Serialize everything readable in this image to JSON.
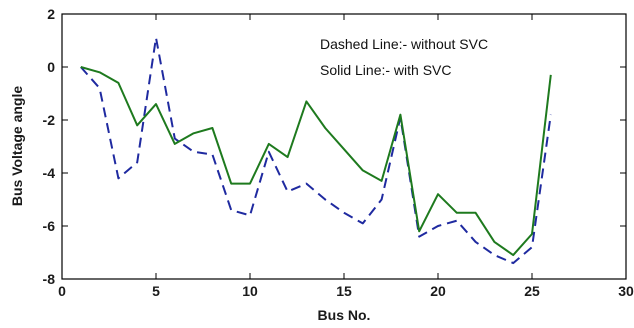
{
  "chart_data": {
    "type": "line",
    "title": "",
    "xlabel": "Bus No.",
    "ylabel": "Bus Voltage angle",
    "xlim": [
      0,
      30
    ],
    "ylim": [
      -8,
      2
    ],
    "xticks": [
      0,
      5,
      10,
      15,
      20,
      25,
      30
    ],
    "yticks": [
      -8,
      -6,
      -4,
      -2,
      0,
      2
    ],
    "grid": false,
    "annotations": [
      "Dashed Line:- without SVC",
      "Solid Line:- with SVC"
    ],
    "series": [
      {
        "style": "dashed",
        "color": "#1f2aa0",
        "x": [
          1,
          2,
          3,
          4,
          5,
          6,
          7,
          8,
          9,
          10,
          11,
          12,
          13,
          14,
          15,
          16,
          17,
          18,
          19,
          20,
          21,
          22,
          23,
          24,
          25,
          26
        ],
        "y": [
          0.0,
          -0.8,
          -4.2,
          -3.6,
          1.1,
          -2.7,
          -3.2,
          -3.3,
          -5.4,
          -5.6,
          -3.2,
          -4.7,
          -4.4,
          -5.0,
          -5.5,
          -5.9,
          -5.0,
          -1.9,
          -6.4,
          -6.0,
          -5.8,
          -6.6,
          -7.1,
          -7.4,
          -6.8,
          -1.8
        ]
      },
      {
        "style": "solid",
        "color": "#1e7a1e",
        "x": [
          1,
          2,
          3,
          4,
          5,
          6,
          7,
          8,
          9,
          10,
          11,
          12,
          13,
          14,
          15,
          16,
          17,
          18,
          19,
          20,
          21,
          22,
          23,
          24,
          25,
          26
        ],
        "y": [
          0.0,
          -0.2,
          -0.6,
          -2.2,
          -1.4,
          -2.9,
          -2.5,
          -2.3,
          -4.4,
          -4.4,
          -2.9,
          -3.4,
          -1.3,
          -2.3,
          -3.1,
          -3.9,
          -4.3,
          -1.8,
          -6.2,
          -4.8,
          -5.5,
          -5.5,
          -6.6,
          -7.1,
          -6.3,
          -0.3
        ]
      }
    ]
  }
}
